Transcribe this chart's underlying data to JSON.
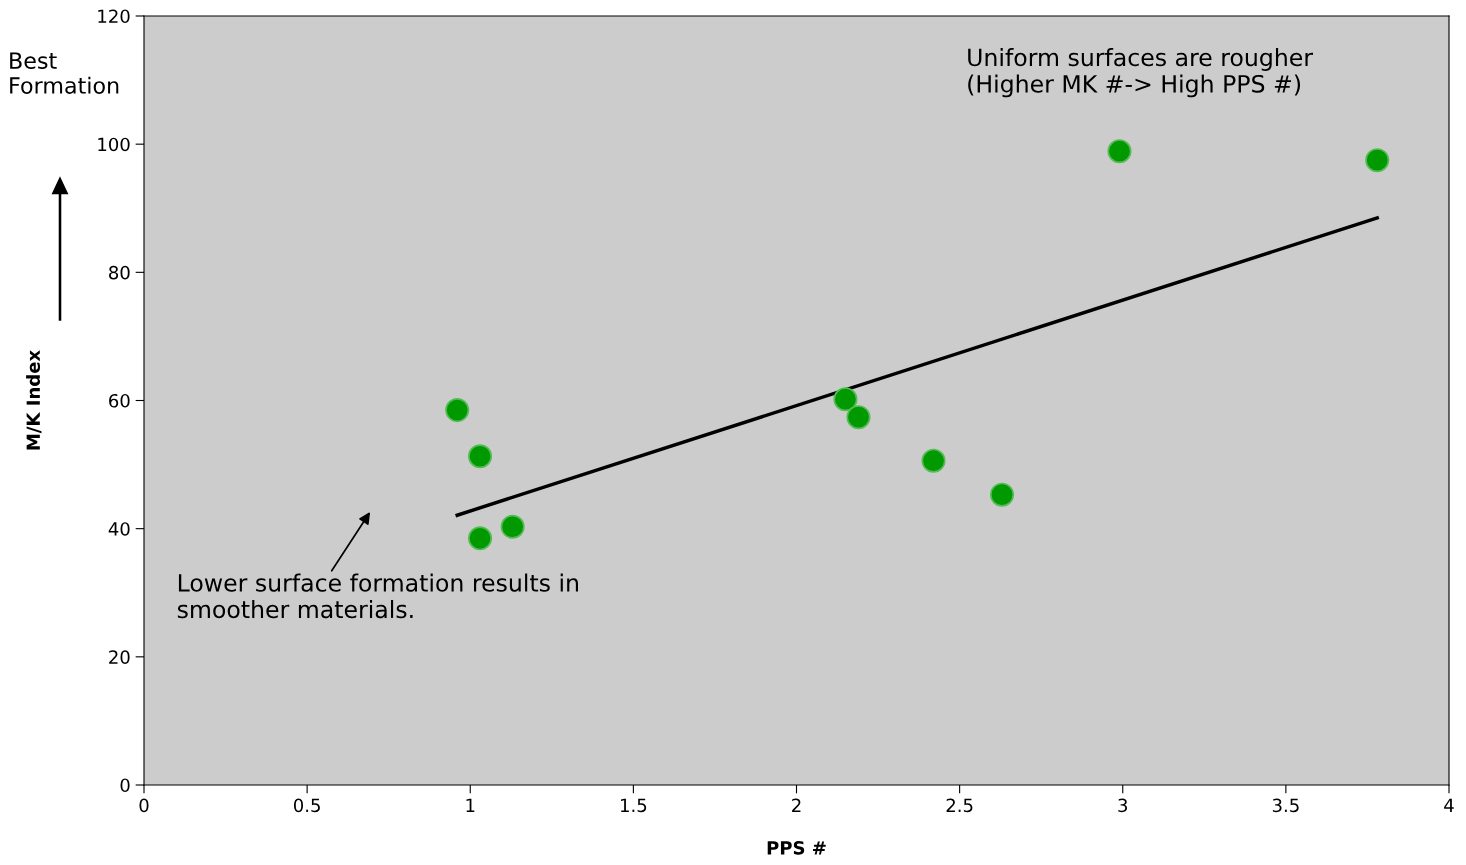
{
  "chart_data": {
    "type": "scatter",
    "xlabel": "PPS #",
    "ylabel": "M/K Index",
    "annotations": [
      "Best\nFormation",
      "Uniform surfaces are rougher\n(Higher MK #-> High PPS #)",
      "Lower surface formation results in\nsmoother materials."
    ],
    "series": [
      {
        "color": "#009900",
        "marker": "circle",
        "x": [
          0.96,
          1.03,
          1.03,
          1.13,
          2.15,
          2.19,
          2.42,
          2.63,
          2.99,
          3.78
        ],
        "values": [
          58.5,
          51.3,
          38.5,
          40.3,
          60.2,
          57.4,
          50.6,
          45.3,
          98.9,
          97.5
        ]
      },
      {
        "type": "line",
        "color": "#000000",
        "marker": "none",
        "line_style": "solid",
        "x": [
          0.96,
          3.78
        ],
        "values": [
          42.1,
          88.5
        ]
      }
    ],
    "xlim": [
      0,
      4
    ],
    "xticks": [
      0,
      0.5,
      1,
      1.5,
      2,
      2.5,
      3,
      3.5,
      4
    ],
    "ylim": [
      0,
      120
    ],
    "yticks": [
      0,
      20,
      40,
      60,
      80,
      100,
      120
    ],
    "grid": false,
    "legend": false
  }
}
